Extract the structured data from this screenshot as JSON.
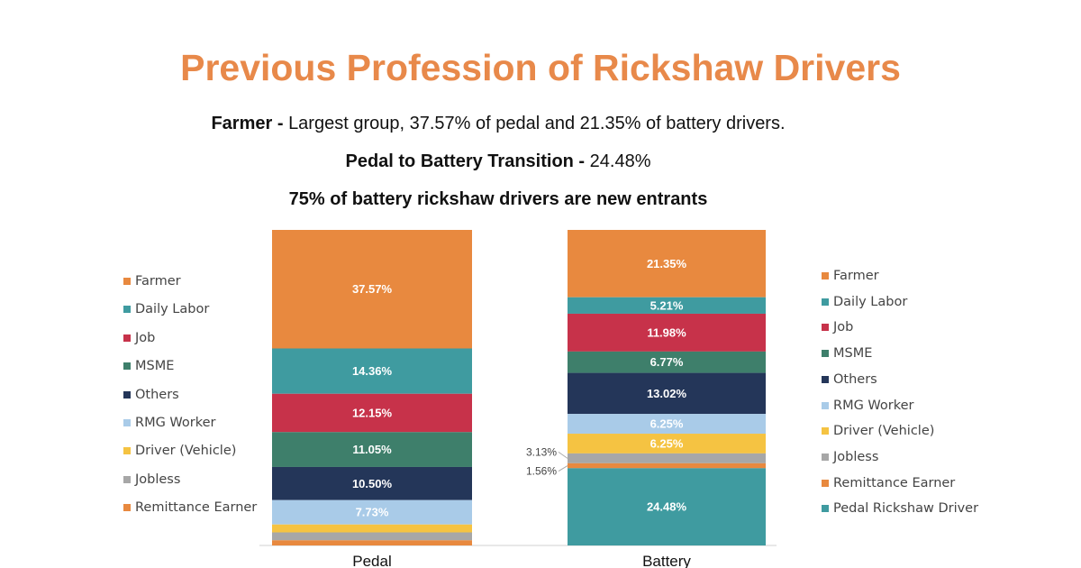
{
  "header": {
    "title": "Previous Profession of Rickshaw Drivers",
    "line1_bold": "Farmer - ",
    "line1_rest": "Largest group, 37.57% of pedal and 21.35% of battery drivers.",
    "line2_bold": "Pedal to Battery Transition - ",
    "line2_rest": "24.48%",
    "line3": "75% of battery rickshaw drivers are new entrants"
  },
  "colors": {
    "title": "#e8894a",
    "Farmer": "#e8893f",
    "Daily Labor": "#3f9ba0",
    "Job": "#c7324a",
    "MSME": "#3e7f6b",
    "Others": "#243659",
    "RMG Worker": "#a9cbe8",
    "Driver (Vehicle)": "#f5c342",
    "Jobless": "#a7a7a7",
    "Remittance Earner": "#e8893f",
    "Pedal Rickshaw Driver": "#3f9ba0"
  },
  "chart_data": {
    "type": "bar",
    "stacked": true,
    "percent_stacked": true,
    "categories": [
      "Pedal",
      "Battery"
    ],
    "series": [
      {
        "name": "Farmer",
        "values": [
          37.57,
          21.35
        ]
      },
      {
        "name": "Daily Labor",
        "values": [
          14.36,
          5.21
        ]
      },
      {
        "name": "Job",
        "values": [
          12.15,
          11.98
        ]
      },
      {
        "name": "MSME",
        "values": [
          11.05,
          6.77
        ]
      },
      {
        "name": "Others",
        "values": [
          10.5,
          13.02
        ]
      },
      {
        "name": "RMG Worker",
        "values": [
          7.73,
          6.25
        ]
      },
      {
        "name": "Driver (Vehicle)",
        "values": [
          2.5,
          6.25
        ]
      },
      {
        "name": "Jobless",
        "values": [
          2.5,
          3.13
        ]
      },
      {
        "name": "Remittance Earner",
        "values": [
          1.64,
          1.56
        ]
      },
      {
        "name": "Pedal Rickshaw Driver",
        "values": [
          0,
          24.48
        ]
      }
    ],
    "labels": {
      "Pedal": [
        "37.57%",
        "14.36%",
        "12.15%",
        "11.05%",
        "10.50%",
        "7.73%",
        "",
        "",
        "",
        ""
      ],
      "Battery": [
        "21.35%",
        "5.21%",
        "11.98%",
        "6.77%",
        "13.02%",
        "6.25%",
        "6.25%",
        "3.13%",
        "1.56%",
        "24.48%"
      ]
    },
    "legend_left": [
      "Farmer",
      "Daily Labor",
      "Job",
      "MSME",
      "Others",
      "RMG Worker",
      "Driver (Vehicle)",
      "Jobless",
      "Remittance Earner"
    ],
    "legend_right": [
      "Farmer",
      "Daily Labor",
      "Job",
      "MSME",
      "Others",
      "RMG Worker",
      "Driver (Vehicle)",
      "Jobless",
      "Remittance Earner",
      "Pedal Rickshaw Driver"
    ],
    "ylim": [
      0,
      100
    ]
  }
}
